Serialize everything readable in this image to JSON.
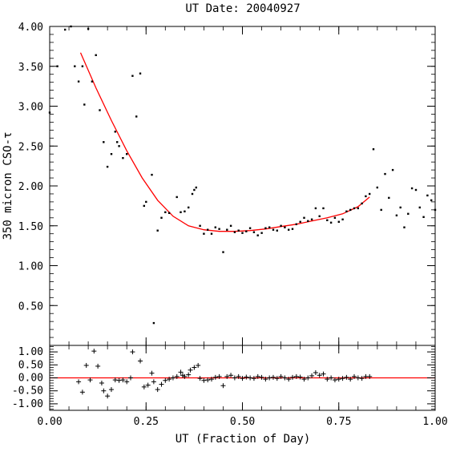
{
  "chart_data": [
    {
      "type": "scatter",
      "title": "UT Date: 20040927",
      "xlabel": "",
      "ylabel": "350 micron CSO-τ",
      "xlim": [
        0,
        1
      ],
      "ylim": [
        0,
        4
      ],
      "yticks": [
        "0.50",
        "1.00",
        "1.50",
        "2.00",
        "2.50",
        "3.00",
        "3.50",
        "4.00"
      ],
      "colors": {
        "points": "#000000",
        "fit": "#ff0000"
      },
      "series": [
        {
          "kind": "points",
          "x": [
            0.0,
            0.02,
            0.04,
            0.055,
            0.065,
            0.075,
            0.085,
            0.09,
            0.1,
            0.11,
            0.12,
            0.13,
            0.14,
            0.15,
            0.16,
            0.17,
            0.175,
            0.18,
            0.19,
            0.2,
            0.215,
            0.225,
            0.235,
            0.245,
            0.25,
            0.265,
            0.27,
            0.28,
            0.29,
            0.3,
            0.31,
            0.33,
            0.34,
            0.35,
            0.36,
            0.37,
            0.375,
            0.38,
            0.39,
            0.4,
            0.41,
            0.42,
            0.43,
            0.44,
            0.45,
            0.46,
            0.47,
            0.48,
            0.49,
            0.5,
            0.51,
            0.52,
            0.53,
            0.54,
            0.55,
            0.56,
            0.57,
            0.58,
            0.59,
            0.6,
            0.61,
            0.62,
            0.63,
            0.64,
            0.65,
            0.66,
            0.67,
            0.68,
            0.69,
            0.7,
            0.71,
            0.72,
            0.73,
            0.74,
            0.75,
            0.76,
            0.77,
            0.78,
            0.79,
            0.8,
            0.81,
            0.82,
            0.83,
            0.84,
            0.85,
            0.86,
            0.87,
            0.88,
            0.89,
            0.9,
            0.91,
            0.92,
            0.93,
            0.94,
            0.95,
            0.96,
            0.97,
            0.98,
            0.99,
            1.0
          ],
          "y": [
            2.92,
            3.5,
            3.96,
            4.0,
            3.5,
            3.31,
            3.5,
            3.02,
            3.97,
            3.31,
            3.64,
            2.95,
            2.55,
            2.24,
            2.4,
            2.68,
            2.55,
            2.5,
            2.35,
            2.4,
            3.38,
            2.87,
            3.41,
            1.75,
            1.8,
            2.14,
            0.28,
            1.44,
            1.6,
            1.67,
            1.66,
            1.86,
            1.67,
            1.68,
            1.73,
            1.9,
            1.95,
            1.98,
            1.5,
            1.4,
            1.45,
            1.4,
            1.48,
            1.46,
            1.17,
            1.45,
            1.5,
            1.42,
            1.44,
            1.41,
            1.43,
            1.47,
            1.42,
            1.38,
            1.41,
            1.47,
            1.48,
            1.45,
            1.44,
            1.5,
            1.48,
            1.45,
            1.46,
            1.52,
            1.55,
            1.6,
            1.56,
            1.58,
            1.72,
            1.62,
            1.72,
            1.57,
            1.54,
            1.6,
            1.55,
            1.58,
            1.68,
            1.7,
            1.72,
            1.72,
            1.78,
            1.87,
            1.9,
            2.46,
            1.98,
            1.7,
            2.15,
            1.85,
            2.2,
            1.63,
            1.73,
            1.48,
            1.65,
            1.97,
            1.95,
            1.73,
            1.61,
            1.88,
            1.82,
            1.7
          ]
        },
        {
          "kind": "fit",
          "x": [
            0.08,
            0.12,
            0.16,
            0.2,
            0.24,
            0.28,
            0.32,
            0.36,
            0.4,
            0.44,
            0.48,
            0.52,
            0.56,
            0.6,
            0.64,
            0.68,
            0.72,
            0.76,
            0.8,
            0.83
          ],
          "y": [
            3.67,
            3.23,
            2.82,
            2.44,
            2.1,
            1.82,
            1.62,
            1.5,
            1.45,
            1.43,
            1.43,
            1.44,
            1.46,
            1.49,
            1.52,
            1.56,
            1.6,
            1.65,
            1.74,
            1.86
          ]
        }
      ]
    },
    {
      "type": "scatter",
      "title": "",
      "xlabel": "UT (Fraction of Day)",
      "ylabel": "",
      "xlim": [
        0,
        1
      ],
      "ylim": [
        -1.25,
        1.25
      ],
      "xticks": [
        "0.00",
        "0.25",
        "0.50",
        "0.75",
        "1.00"
      ],
      "yticks": [
        "-1.00",
        "-0.50",
        "0.00",
        "0.50",
        "1.00"
      ],
      "colors": {
        "points": "#000000",
        "zero": "#ff0000"
      },
      "series": [
        {
          "kind": "residuals",
          "x": [
            0.075,
            0.085,
            0.095,
            0.105,
            0.115,
            0.125,
            0.135,
            0.14,
            0.15,
            0.16,
            0.17,
            0.18,
            0.19,
            0.2,
            0.21,
            0.215,
            0.235,
            0.245,
            0.255,
            0.265,
            0.27,
            0.28,
            0.29,
            0.3,
            0.31,
            0.32,
            0.33,
            0.34,
            0.345,
            0.35,
            0.36,
            0.365,
            0.375,
            0.385,
            0.39,
            0.4,
            0.41,
            0.42,
            0.43,
            0.44,
            0.45,
            0.46,
            0.47,
            0.48,
            0.49,
            0.5,
            0.51,
            0.52,
            0.53,
            0.54,
            0.55,
            0.56,
            0.57,
            0.58,
            0.59,
            0.6,
            0.61,
            0.62,
            0.63,
            0.64,
            0.65,
            0.66,
            0.67,
            0.68,
            0.69,
            0.7,
            0.71,
            0.72,
            0.73,
            0.74,
            0.75,
            0.76,
            0.77,
            0.78,
            0.79,
            0.8,
            0.81,
            0.82,
            0.83
          ],
          "y": [
            -0.15,
            -0.55,
            0.48,
            -0.08,
            1.03,
            0.45,
            -0.2,
            -0.5,
            -0.7,
            -0.45,
            -0.08,
            -0.1,
            -0.08,
            -0.15,
            0.0,
            1.0,
            0.65,
            -0.35,
            -0.28,
            0.18,
            -0.15,
            -0.45,
            -0.25,
            -0.1,
            -0.05,
            0.0,
            0.05,
            0.22,
            0.1,
            0.05,
            0.12,
            0.3,
            0.4,
            0.48,
            -0.02,
            -0.1,
            -0.08,
            -0.05,
            0.02,
            0.05,
            -0.3,
            0.05,
            0.1,
            0.0,
            0.05,
            -0.02,
            0.03,
            0.0,
            -0.02,
            0.05,
            0.02,
            -0.05,
            0.0,
            0.02,
            -0.02,
            0.05,
            0.0,
            -0.05,
            0.02,
            0.05,
            0.03,
            -0.05,
            0.0,
            0.08,
            0.2,
            0.1,
            0.15,
            -0.05,
            0.0,
            -0.08,
            -0.05,
            -0.02,
            0.02,
            -0.05,
            0.05,
            0.0,
            -0.02,
            0.05,
            0.05
          ]
        }
      ]
    }
  ]
}
